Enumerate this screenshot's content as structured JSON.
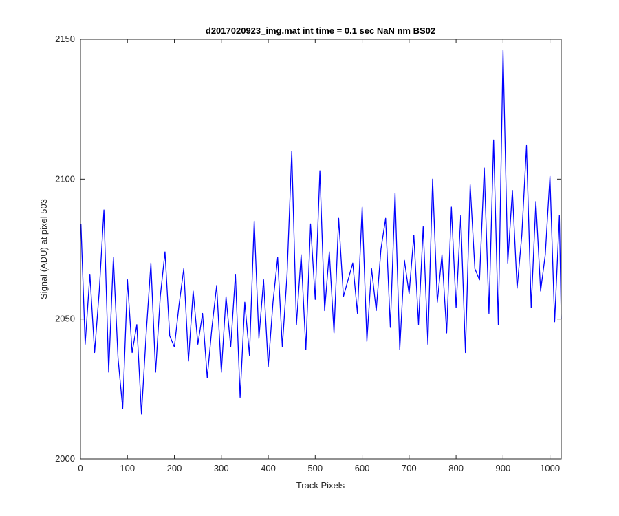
{
  "chart_data": {
    "type": "line",
    "title": "d2017020923_img.mat int time = 0.1 sec  NaN nm BS02",
    "xlabel": "Track Pixels",
    "ylabel": "Signal (ADU) at pixel 503",
    "xlim": [
      0,
      1024
    ],
    "ylim": [
      2000,
      2150
    ],
    "xticks": [
      0,
      100,
      200,
      300,
      400,
      500,
      600,
      700,
      800,
      900,
      1000
    ],
    "yticks": [
      2000,
      2050,
      2100,
      2150
    ],
    "grid": false,
    "series": [
      {
        "color": "#0000ff",
        "x": [
          1,
          10,
          20,
          30,
          40,
          50,
          60,
          70,
          80,
          90,
          100,
          110,
          120,
          130,
          140,
          150,
          160,
          170,
          180,
          190,
          200,
          210,
          220,
          230,
          240,
          250,
          260,
          270,
          280,
          290,
          300,
          310,
          320,
          330,
          340,
          350,
          360,
          370,
          380,
          390,
          400,
          410,
          420,
          430,
          440,
          450,
          460,
          470,
          480,
          490,
          500,
          510,
          520,
          530,
          540,
          550,
          560,
          570,
          580,
          590,
          600,
          610,
          620,
          630,
          640,
          650,
          660,
          670,
          680,
          690,
          700,
          710,
          720,
          730,
          740,
          750,
          760,
          770,
          780,
          790,
          800,
          810,
          820,
          830,
          840,
          850,
          860,
          870,
          880,
          890,
          900,
          910,
          920,
          930,
          940,
          950,
          960,
          970,
          980,
          990,
          1000,
          1010,
          1020,
          1024
        ],
        "y": [
          2084,
          2041,
          2066,
          2038,
          2060,
          2089,
          2031,
          2072,
          2036,
          2018,
          2064,
          2038,
          2048,
          2016,
          2045,
          2070,
          2031,
          2058,
          2074,
          2044,
          2040,
          2055,
          2068,
          2035,
          2060,
          2041,
          2052,
          2029,
          2047,
          2062,
          2031,
          2058,
          2040,
          2066,
          2022,
          2056,
          2037,
          2085,
          2043,
          2064,
          2033,
          2056,
          2072,
          2040,
          2066,
          2110,
          2048,
          2073,
          2039,
          2084,
          2057,
          2103,
          2053,
          2074,
          2045,
          2086,
          2058,
          2064,
          2070,
          2052,
          2090,
          2042,
          2068,
          2053,
          2075,
          2086,
          2047,
          2095,
          2039,
          2071,
          2059,
          2080,
          2048,
          2083,
          2041,
          2100,
          2056,
          2073,
          2045,
          2090,
          2054,
          2087,
          2038,
          2098,
          2068,
          2064,
          2104,
          2052,
          2114,
          2048,
          2146,
          2070,
          2096,
          2061,
          2080,
          2112,
          2054,
          2092,
          2060,
          2073,
          2101,
          2049,
          2087,
          2050
        ]
      }
    ]
  }
}
